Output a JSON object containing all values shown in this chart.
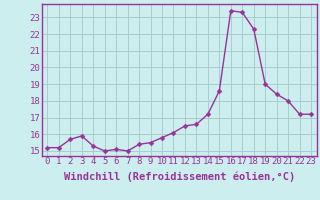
{
  "x": [
    0,
    1,
    2,
    3,
    4,
    5,
    6,
    7,
    8,
    9,
    10,
    11,
    12,
    13,
    14,
    15,
    16,
    17,
    18,
    19,
    20,
    21,
    22,
    23
  ],
  "y": [
    15.2,
    15.2,
    15.7,
    15.9,
    15.3,
    15.0,
    15.1,
    15.0,
    15.4,
    15.5,
    15.8,
    16.1,
    16.5,
    16.6,
    17.2,
    18.6,
    23.4,
    23.3,
    22.3,
    19.0,
    18.4,
    18.0,
    17.2,
    17.2
  ],
  "line_color": "#993399",
  "marker": "D",
  "marker_size": 2.5,
  "background_color": "#cceeee",
  "grid_color": "#aacccc",
  "xlabel": "Windchill (Refroidissement éolien,°C)",
  "xlabel_fontsize": 7.5,
  "xlim": [
    -0.5,
    23.5
  ],
  "ylim": [
    14.7,
    23.8
  ],
  "yticks": [
    15,
    16,
    17,
    18,
    19,
    20,
    21,
    22,
    23
  ],
  "xticks": [
    0,
    1,
    2,
    3,
    4,
    5,
    6,
    7,
    8,
    9,
    10,
    11,
    12,
    13,
    14,
    15,
    16,
    17,
    18,
    19,
    20,
    21,
    22,
    23
  ],
  "tick_fontsize": 6.5,
  "line_width": 1.0,
  "spine_color": "#993399"
}
